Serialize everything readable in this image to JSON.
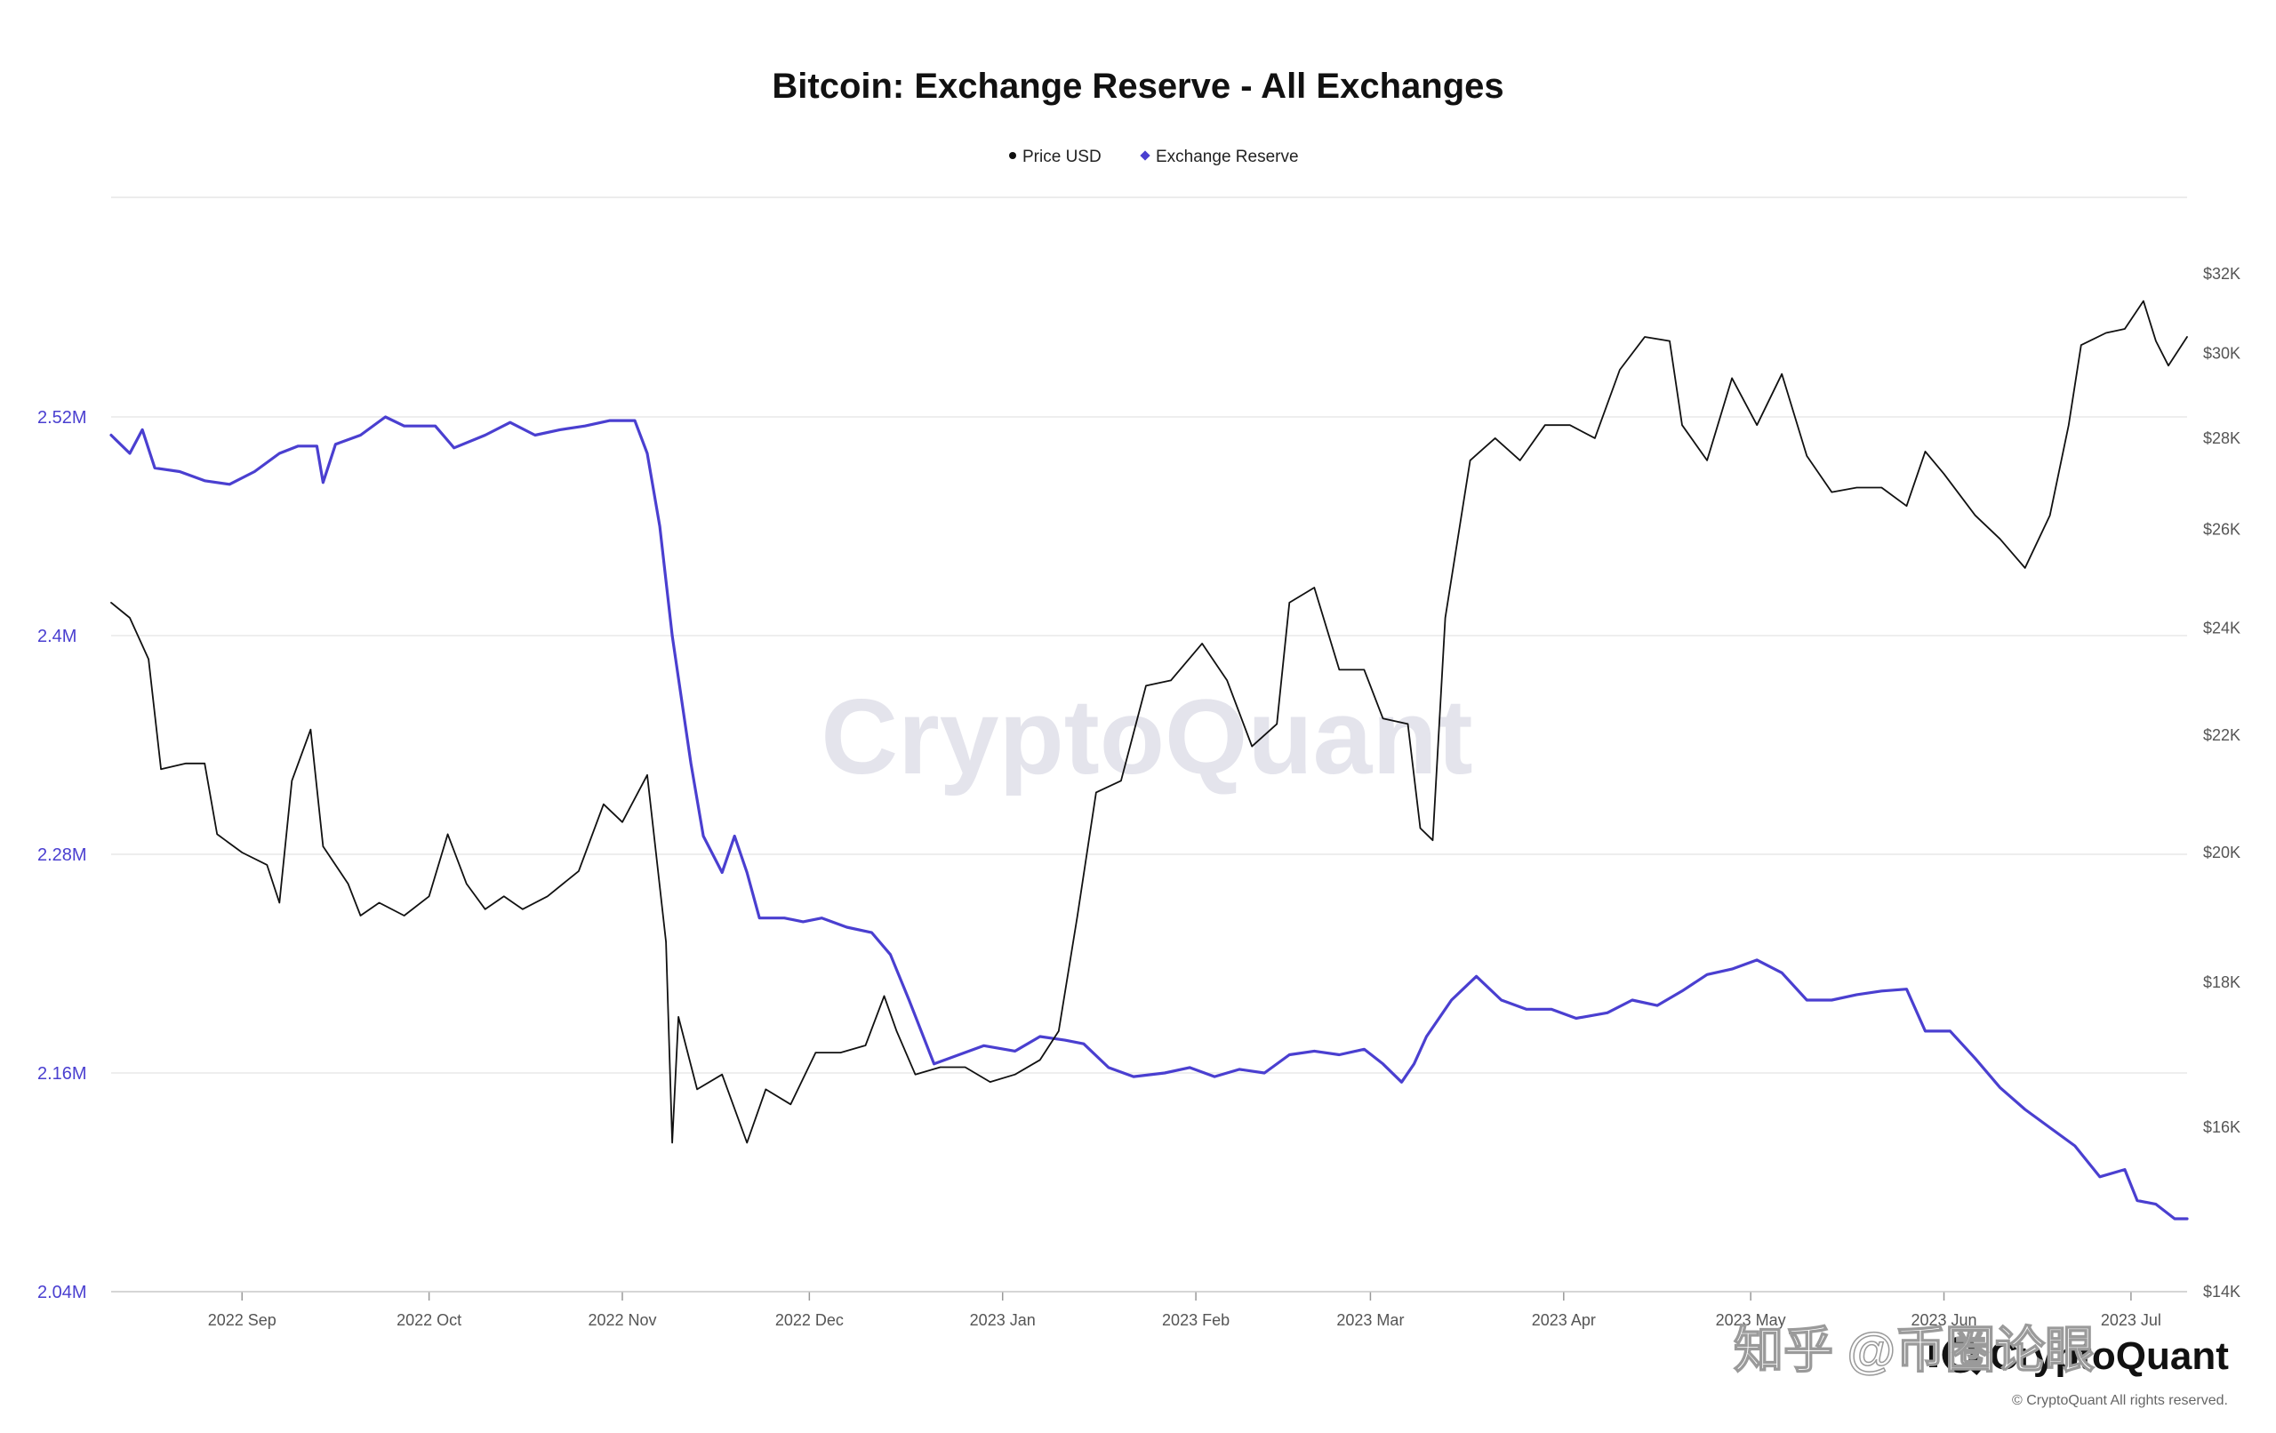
{
  "chart_data": {
    "type": "line",
    "title": "Bitcoin: Exchange Reserve - All Exchanges",
    "legend": [
      {
        "name": "Price USD",
        "color": "#111111"
      },
      {
        "name": "Exchange Reserve",
        "color": "#4a3fd0"
      }
    ],
    "legend_position": "top-center",
    "grid": true,
    "x_axis": {
      "range": [
        "2022-08-11",
        "2023-07-10"
      ],
      "ticks": [
        {
          "label": "2022 Sep",
          "date": "2022-09-01"
        },
        {
          "label": "2022 Oct",
          "date": "2022-10-01"
        },
        {
          "label": "2022 Nov",
          "date": "2022-11-01"
        },
        {
          "label": "2022 Dec",
          "date": "2022-12-01"
        },
        {
          "label": "2023 Jan",
          "date": "2023-01-01"
        },
        {
          "label": "2023 Feb",
          "date": "2023-02-01"
        },
        {
          "label": "2023 Mar",
          "date": "2023-03-01"
        },
        {
          "label": "2023 Apr",
          "date": "2023-04-01"
        },
        {
          "label": "2023 May",
          "date": "2023-05-01"
        },
        {
          "label": "2023 Jun",
          "date": "2023-06-01"
        },
        {
          "label": "2023 Jul",
          "date": "2023-07-01"
        }
      ]
    },
    "y_left": {
      "scale": "linear",
      "range": [
        2.04,
        2.64
      ],
      "unit": "M BTC",
      "ticks": [
        {
          "label": "2.04M",
          "value": 2.04
        },
        {
          "label": "2.16M",
          "value": 2.16
        },
        {
          "label": "2.28M",
          "value": 2.28
        },
        {
          "label": "2.4M",
          "value": 2.4
        },
        {
          "label": "2.52M",
          "value": 2.52
        }
      ]
    },
    "y_right": {
      "scale": "log",
      "range": [
        14000,
        32000
      ],
      "ticks": [
        {
          "label": "$14K",
          "value": 14000
        },
        {
          "label": "$16K",
          "value": 16000
        },
        {
          "label": "$18K",
          "value": 18000
        },
        {
          "label": "$20K",
          "value": 20000
        },
        {
          "label": "$22K",
          "value": 22000
        },
        {
          "label": "$24K",
          "value": 24000
        },
        {
          "label": "$26K",
          "value": 26000
        },
        {
          "label": "$28K",
          "value": 28000
        },
        {
          "label": "$30K",
          "value": 30000
        },
        {
          "label": "$32K",
          "value": 32000
        }
      ]
    },
    "series": [
      {
        "name": "Exchange Reserve",
        "axis": "left",
        "color": "#4a3fd0",
        "points": [
          [
            "2022-08-11",
            2.51
          ],
          [
            "2022-08-14",
            2.5
          ],
          [
            "2022-08-16",
            2.513
          ],
          [
            "2022-08-18",
            2.492
          ],
          [
            "2022-08-22",
            2.49
          ],
          [
            "2022-08-26",
            2.485
          ],
          [
            "2022-08-30",
            2.483
          ],
          [
            "2022-09-03",
            2.49
          ],
          [
            "2022-09-07",
            2.5
          ],
          [
            "2022-09-10",
            2.504
          ],
          [
            "2022-09-13",
            2.504
          ],
          [
            "2022-09-14",
            2.484
          ],
          [
            "2022-09-16",
            2.505
          ],
          [
            "2022-09-20",
            2.51
          ],
          [
            "2022-09-24",
            2.52
          ],
          [
            "2022-09-27",
            2.515
          ],
          [
            "2022-10-02",
            2.515
          ],
          [
            "2022-10-05",
            2.503
          ],
          [
            "2022-10-10",
            2.51
          ],
          [
            "2022-10-14",
            2.517
          ],
          [
            "2022-10-18",
            2.51
          ],
          [
            "2022-10-22",
            2.513
          ],
          [
            "2022-10-26",
            2.515
          ],
          [
            "2022-10-30",
            2.518
          ],
          [
            "2022-11-03",
            2.518
          ],
          [
            "2022-11-05",
            2.5
          ],
          [
            "2022-11-07",
            2.46
          ],
          [
            "2022-11-09",
            2.4
          ],
          [
            "2022-11-12",
            2.33
          ],
          [
            "2022-11-14",
            2.29
          ],
          [
            "2022-11-17",
            2.27
          ],
          [
            "2022-11-19",
            2.29
          ],
          [
            "2022-11-21",
            2.27
          ],
          [
            "2022-11-23",
            2.245
          ],
          [
            "2022-11-27",
            2.245
          ],
          [
            "2022-11-30",
            2.243
          ],
          [
            "2022-12-03",
            2.245
          ],
          [
            "2022-12-07",
            2.24
          ],
          [
            "2022-12-11",
            2.237
          ],
          [
            "2022-12-14",
            2.225
          ],
          [
            "2022-12-17",
            2.2
          ],
          [
            "2022-12-21",
            2.165
          ],
          [
            "2022-12-25",
            2.17
          ],
          [
            "2022-12-29",
            2.175
          ],
          [
            "2023-01-03",
            2.172
          ],
          [
            "2023-01-07",
            2.18
          ],
          [
            "2023-01-11",
            2.178
          ],
          [
            "2023-01-14",
            2.176
          ],
          [
            "2023-01-18",
            2.163
          ],
          [
            "2023-01-22",
            2.158
          ],
          [
            "2023-01-27",
            2.16
          ],
          [
            "2023-01-31",
            2.163
          ],
          [
            "2023-02-04",
            2.158
          ],
          [
            "2023-02-08",
            2.162
          ],
          [
            "2023-02-12",
            2.16
          ],
          [
            "2023-02-16",
            2.17
          ],
          [
            "2023-02-20",
            2.172
          ],
          [
            "2023-02-24",
            2.17
          ],
          [
            "2023-02-28",
            2.173
          ],
          [
            "2023-03-03",
            2.165
          ],
          [
            "2023-03-06",
            2.155
          ],
          [
            "2023-03-08",
            2.165
          ],
          [
            "2023-03-10",
            2.18
          ],
          [
            "2023-03-14",
            2.2
          ],
          [
            "2023-03-18",
            2.213
          ],
          [
            "2023-03-22",
            2.2
          ],
          [
            "2023-03-26",
            2.195
          ],
          [
            "2023-03-30",
            2.195
          ],
          [
            "2023-04-03",
            2.19
          ],
          [
            "2023-04-08",
            2.193
          ],
          [
            "2023-04-12",
            2.2
          ],
          [
            "2023-04-16",
            2.197
          ],
          [
            "2023-04-20",
            2.205
          ],
          [
            "2023-04-24",
            2.214
          ],
          [
            "2023-04-28",
            2.217
          ],
          [
            "2023-05-02",
            2.222
          ],
          [
            "2023-05-06",
            2.215
          ],
          [
            "2023-05-10",
            2.2
          ],
          [
            "2023-05-14",
            2.2
          ],
          [
            "2023-05-18",
            2.203
          ],
          [
            "2023-05-22",
            2.205
          ],
          [
            "2023-05-26",
            2.206
          ],
          [
            "2023-05-29",
            2.183
          ],
          [
            "2023-06-02",
            2.183
          ],
          [
            "2023-06-06",
            2.168
          ],
          [
            "2023-06-10",
            2.152
          ],
          [
            "2023-06-14",
            2.14
          ],
          [
            "2023-06-18",
            2.13
          ],
          [
            "2023-06-22",
            2.12
          ],
          [
            "2023-06-26",
            2.103
          ],
          [
            "2023-06-30",
            2.107
          ],
          [
            "2023-07-02",
            2.09
          ],
          [
            "2023-07-05",
            2.088
          ],
          [
            "2023-07-08",
            2.08
          ],
          [
            "2023-07-10",
            2.08
          ]
        ]
      },
      {
        "name": "Price USD",
        "axis": "right",
        "color": "#111111",
        "points": [
          [
            "2022-08-11",
            24500
          ],
          [
            "2022-08-14",
            24200
          ],
          [
            "2022-08-17",
            23400
          ],
          [
            "2022-08-19",
            21400
          ],
          [
            "2022-08-23",
            21500
          ],
          [
            "2022-08-26",
            21500
          ],
          [
            "2022-08-28",
            20300
          ],
          [
            "2022-09-01",
            20000
          ],
          [
            "2022-09-05",
            19800
          ],
          [
            "2022-09-07",
            19200
          ],
          [
            "2022-09-09",
            21200
          ],
          [
            "2022-09-12",
            22100
          ],
          [
            "2022-09-14",
            20100
          ],
          [
            "2022-09-18",
            19500
          ],
          [
            "2022-09-20",
            19000
          ],
          [
            "2022-09-23",
            19200
          ],
          [
            "2022-09-27",
            19000
          ],
          [
            "2022-10-01",
            19300
          ],
          [
            "2022-10-04",
            20300
          ],
          [
            "2022-10-07",
            19500
          ],
          [
            "2022-10-10",
            19100
          ],
          [
            "2022-10-13",
            19300
          ],
          [
            "2022-10-16",
            19100
          ],
          [
            "2022-10-20",
            19300
          ],
          [
            "2022-10-25",
            19700
          ],
          [
            "2022-10-29",
            20800
          ],
          [
            "2022-11-01",
            20500
          ],
          [
            "2022-11-05",
            21300
          ],
          [
            "2022-11-08",
            18600
          ],
          [
            "2022-11-09",
            15800
          ],
          [
            "2022-11-10",
            17500
          ],
          [
            "2022-11-13",
            16500
          ],
          [
            "2022-11-17",
            16700
          ],
          [
            "2022-11-21",
            15800
          ],
          [
            "2022-11-24",
            16500
          ],
          [
            "2022-11-28",
            16300
          ],
          [
            "2022-12-02",
            17000
          ],
          [
            "2022-12-06",
            17000
          ],
          [
            "2022-12-10",
            17100
          ],
          [
            "2022-12-13",
            17800
          ],
          [
            "2022-12-15",
            17300
          ],
          [
            "2022-12-18",
            16700
          ],
          [
            "2022-12-22",
            16800
          ],
          [
            "2022-12-26",
            16800
          ],
          [
            "2022-12-30",
            16600
          ],
          [
            "2023-01-03",
            16700
          ],
          [
            "2023-01-07",
            16900
          ],
          [
            "2023-01-10",
            17300
          ],
          [
            "2023-01-13",
            19000
          ],
          [
            "2023-01-16",
            21000
          ],
          [
            "2023-01-20",
            21200
          ],
          [
            "2023-01-24",
            22900
          ],
          [
            "2023-01-28",
            23000
          ],
          [
            "2023-02-02",
            23700
          ],
          [
            "2023-02-06",
            23000
          ],
          [
            "2023-02-10",
            21800
          ],
          [
            "2023-02-14",
            22200
          ],
          [
            "2023-02-16",
            24500
          ],
          [
            "2023-02-20",
            24800
          ],
          [
            "2023-02-24",
            23200
          ],
          [
            "2023-02-28",
            23200
          ],
          [
            "2023-03-03",
            22300
          ],
          [
            "2023-03-07",
            22200
          ],
          [
            "2023-03-09",
            20400
          ],
          [
            "2023-03-11",
            20200
          ],
          [
            "2023-03-13",
            24200
          ],
          [
            "2023-03-17",
            27500
          ],
          [
            "2023-03-21",
            28000
          ],
          [
            "2023-03-25",
            27500
          ],
          [
            "2023-03-29",
            28300
          ],
          [
            "2023-04-02",
            28300
          ],
          [
            "2023-04-06",
            28000
          ],
          [
            "2023-04-10",
            29600
          ],
          [
            "2023-04-14",
            30400
          ],
          [
            "2023-04-18",
            30300
          ],
          [
            "2023-04-20",
            28300
          ],
          [
            "2023-04-24",
            27500
          ],
          [
            "2023-04-28",
            29400
          ],
          [
            "2023-05-02",
            28300
          ],
          [
            "2023-05-06",
            29500
          ],
          [
            "2023-05-10",
            27600
          ],
          [
            "2023-05-14",
            26800
          ],
          [
            "2023-05-18",
            26900
          ],
          [
            "2023-05-22",
            26900
          ],
          [
            "2023-05-26",
            26500
          ],
          [
            "2023-05-29",
            27700
          ],
          [
            "2023-06-01",
            27200
          ],
          [
            "2023-06-06",
            26300
          ],
          [
            "2023-06-10",
            25800
          ],
          [
            "2023-06-14",
            25200
          ],
          [
            "2023-06-18",
            26300
          ],
          [
            "2023-06-21",
            28300
          ],
          [
            "2023-06-23",
            30200
          ],
          [
            "2023-06-27",
            30500
          ],
          [
            "2023-06-30",
            30600
          ],
          [
            "2023-07-03",
            31300
          ],
          [
            "2023-07-05",
            30300
          ],
          [
            "2023-07-07",
            29700
          ],
          [
            "2023-07-10",
            30400
          ]
        ]
      }
    ]
  },
  "watermark": "CryptoQuant",
  "brand": {
    "logo": "cryptoquant-logo",
    "name": "CryptoQuant",
    "copyright": "© CryptoQuant All rights reserved."
  },
  "overlay_watermark": "知乎 @币圈论眼"
}
